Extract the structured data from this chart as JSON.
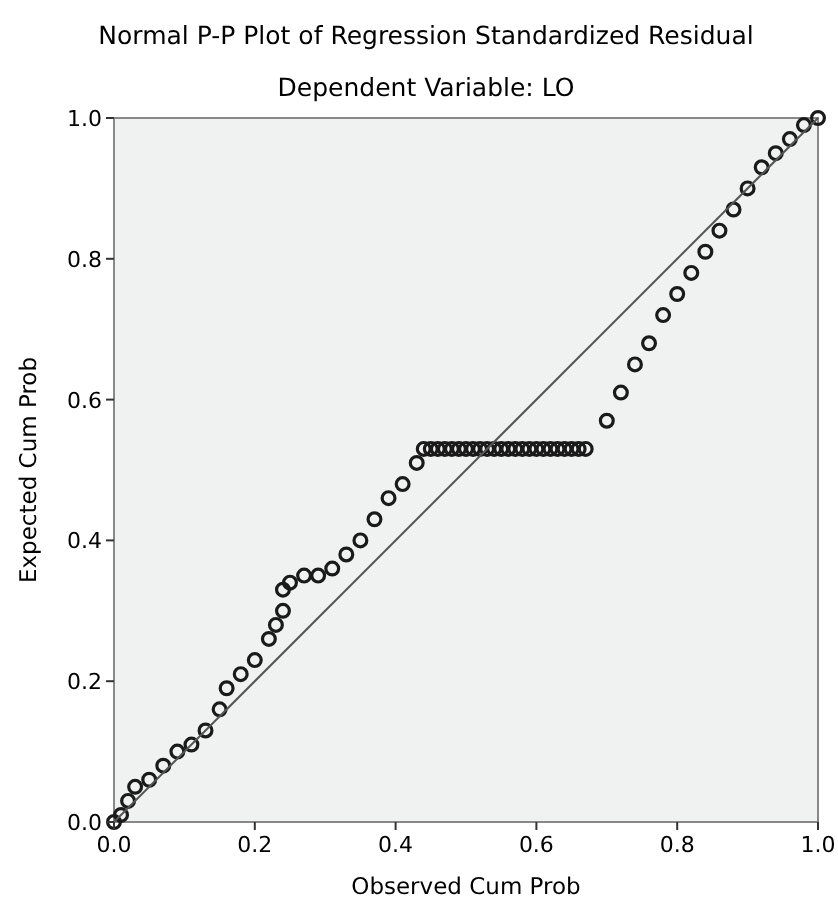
{
  "chart_data": {
    "type": "scatter",
    "title": "Normal P-P Plot of Regression Standardized Residual",
    "subtitle": "Dependent Variable: LO",
    "xlabel": "Observed Cum Prob",
    "ylabel": "Expected Cum Prob",
    "xlim": [
      0,
      1
    ],
    "ylim": [
      0,
      1
    ],
    "xticks": [
      {
        "value": 0,
        "label": "0.0"
      },
      0.2,
      0.4,
      0.6,
      0.8,
      {
        "value": 1,
        "label": "1.0"
      }
    ],
    "yticks": [
      {
        "value": 0,
        "label": "0.0"
      },
      0.2,
      0.4,
      0.6,
      0.8,
      {
        "value": 1,
        "label": "1.0"
      }
    ],
    "grid": false,
    "series": [
      {
        "marker": "circle",
        "color": "#1a1a1a",
        "x": [
          0,
          0.01,
          0.02,
          0.03,
          0.05,
          0.07,
          0.09,
          0.11,
          0.13,
          0.15,
          0.16,
          0.18,
          0.2,
          0.22,
          0.23,
          0.24,
          0.24,
          0.25,
          0.27,
          0.29,
          0.31,
          0.33,
          0.35,
          0.37,
          0.39,
          0.41,
          0.43,
          0.44,
          0.45,
          0.46,
          0.47,
          0.48,
          0.49,
          0.5,
          0.51,
          0.52,
          0.53,
          0.54,
          0.55,
          0.56,
          0.57,
          0.58,
          0.59,
          0.6,
          0.61,
          0.62,
          0.63,
          0.64,
          0.65,
          0.66,
          0.67,
          0.7,
          0.72,
          0.74,
          0.76,
          0.78,
          0.8,
          0.82,
          0.84,
          0.86,
          0.88,
          0.9,
          0.92,
          0.94,
          0.96,
          0.98,
          1
        ],
        "values": [
          0,
          0.01,
          0.03,
          0.05,
          0.06,
          0.08,
          0.1,
          0.11,
          0.13,
          0.16,
          0.19,
          0.21,
          0.23,
          0.26,
          0.28,
          0.3,
          0.33,
          0.34,
          0.35,
          0.35,
          0.36,
          0.38,
          0.4,
          0.43,
          0.46,
          0.48,
          0.51,
          0.53,
          0.53,
          0.53,
          0.53,
          0.53,
          0.53,
          0.53,
          0.53,
          0.53,
          0.53,
          0.53,
          0.53,
          0.53,
          0.53,
          0.53,
          0.53,
          0.53,
          0.53,
          0.53,
          0.53,
          0.53,
          0.53,
          0.53,
          0.53,
          0.57,
          0.61,
          0.65,
          0.68,
          0.72,
          0.75,
          0.78,
          0.81,
          0.84,
          0.87,
          0.9,
          0.93,
          0.95,
          0.97,
          0.99,
          1
        ]
      },
      {
        "type": "line",
        "marker": "none",
        "color": "#555555",
        "x": [
          0,
          1
        ],
        "values": [
          0,
          1
        ]
      }
    ]
  }
}
